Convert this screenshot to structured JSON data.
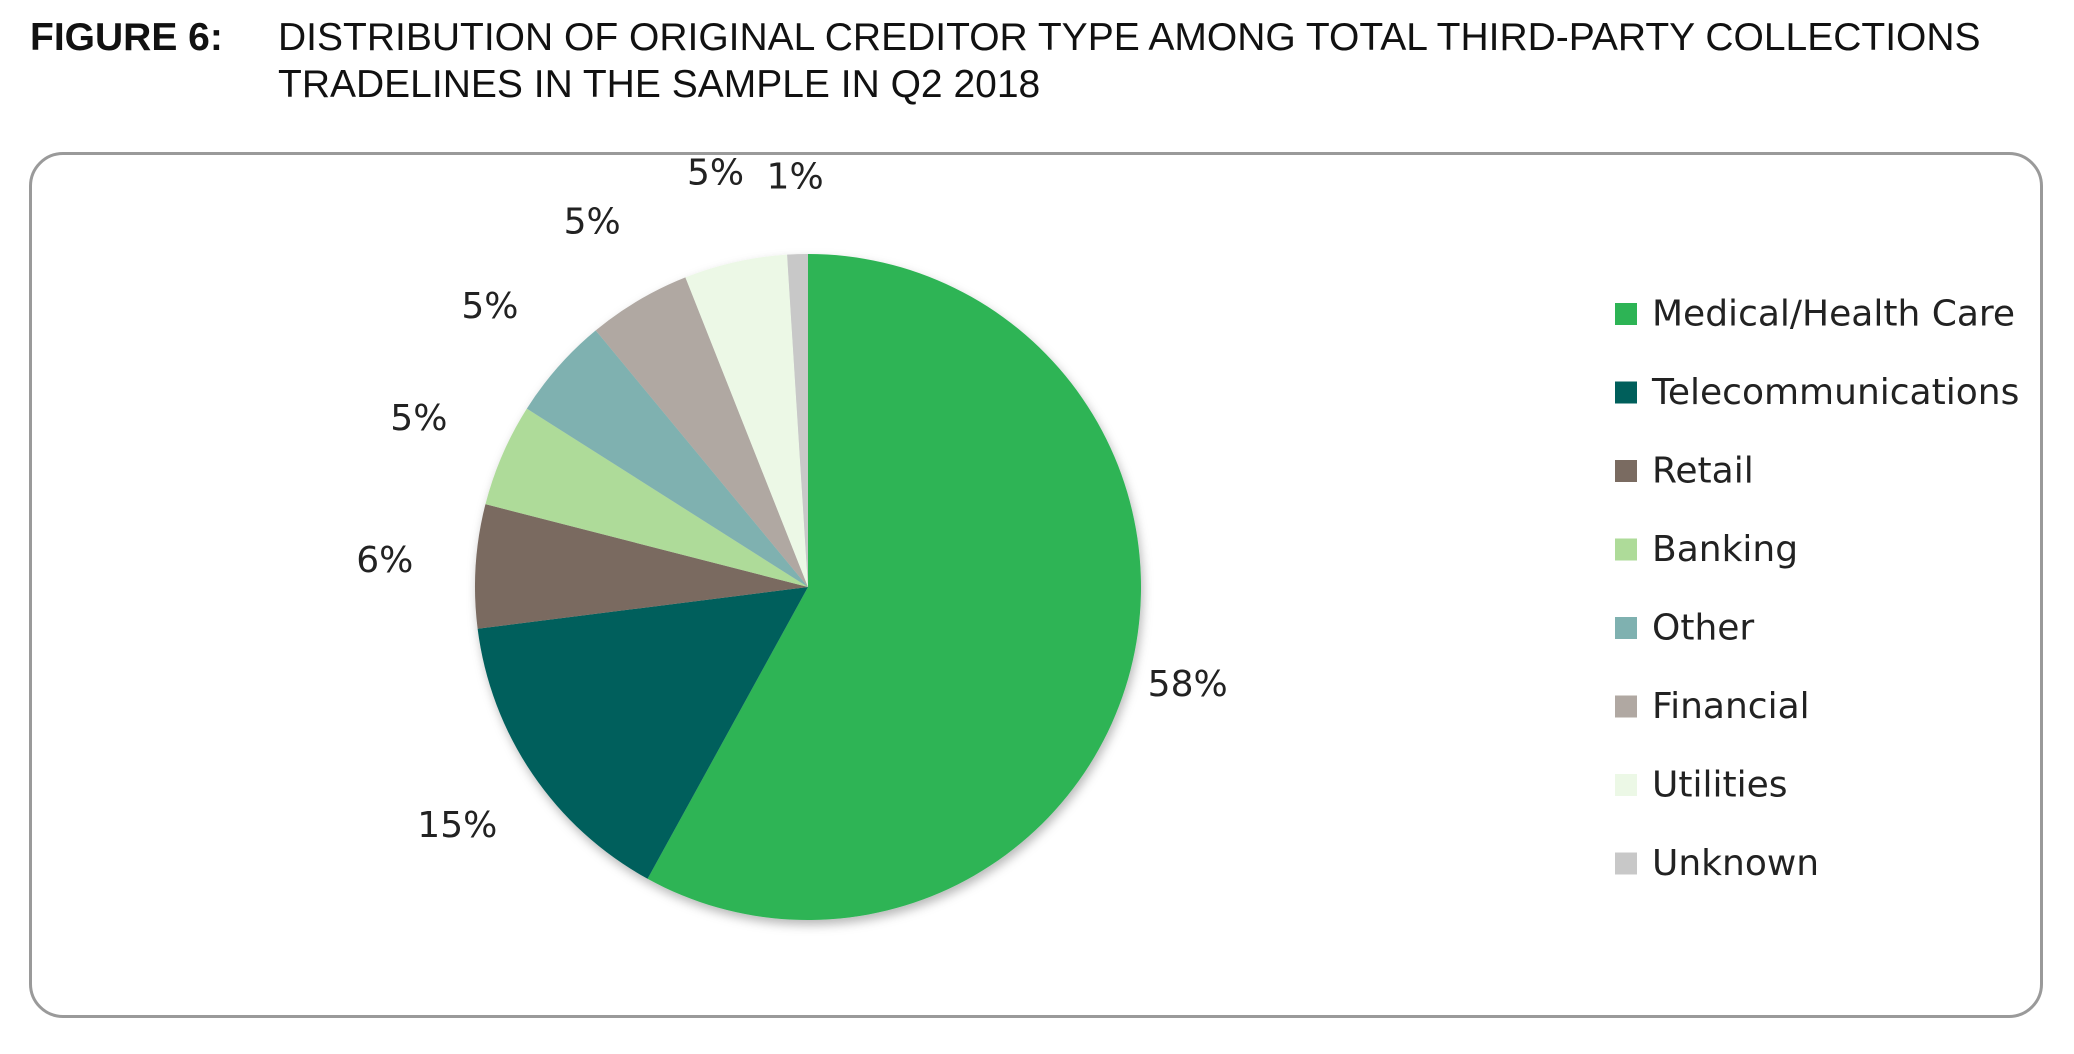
{
  "figure": {
    "label": "FIGURE 6:",
    "title": "DISTRIBUTION OF ORIGINAL CREDITOR TYPE AMONG TOTAL THIRD-PARTY COLLECTIONS TRADELINES IN THE SAMPLE IN Q2 2018"
  },
  "chart_data": {
    "type": "pie",
    "title": "",
    "legend_position": "right",
    "categories": [
      "Medical/Health Care",
      "Telecommunications",
      "Retail",
      "Banking",
      "Other",
      "Financial",
      "Utilities",
      "Unknown"
    ],
    "values": [
      58,
      15,
      6,
      5,
      5,
      5,
      5,
      1
    ],
    "labels": [
      "58%",
      "15%",
      "6%",
      "5%",
      "5%",
      "5%",
      "5%",
      "1%"
    ],
    "colors": [
      "#2db455",
      "#005f5b",
      "#7a6b61",
      "#aedb99",
      "#7fb1b0",
      "#b0a8a2",
      "#ecf8e6",
      "#c8c8c8"
    ]
  }
}
